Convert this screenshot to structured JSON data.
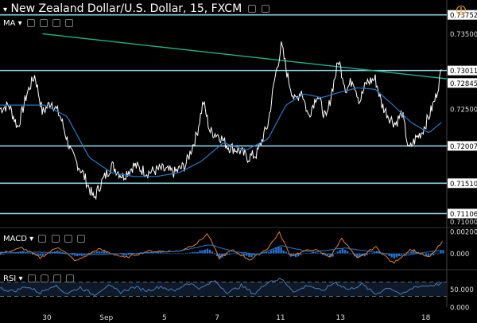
{
  "header": {
    "title": "New Zealand Dollar/U.S. Dollar, 15, FXCM",
    "dropdown_glyph": "▾",
    "indicator_ma": "MA",
    "alert_glyph": "!"
  },
  "colors": {
    "background": "#000000",
    "price": "#ffffff",
    "ma": "#2a78c2",
    "levels": "#8fd2e0",
    "trendline": "#1fb38f",
    "macd": "#e0802a",
    "signal": "#2a78c2",
    "hist": "#2a6fd0",
    "rsi": "#4f78ad",
    "price_label_bg": "#ffffff",
    "current_label_bg": "#ffffff"
  },
  "chart_data": [
    {
      "type": "line",
      "name": "price-panel",
      "x_ticks": [
        "30",
        "Sep",
        "5",
        "7",
        "11",
        "13",
        "18"
      ],
      "y_ticks": [
        "0.73752",
        "0.73500",
        "0.73011",
        "0.72845",
        "0.72500",
        "0.72007",
        "0.71510",
        "0.71106",
        "0.71000"
      ],
      "ylim": [
        0.7092,
        0.7395
      ],
      "horizontal_levels": [
        0.73752,
        0.73011,
        0.72007,
        0.7151,
        0.71106
      ],
      "current_price": 0.72845,
      "trendline": [
        [
          0.095,
          0.735
        ],
        [
          1.0,
          0.729
        ]
      ],
      "price_anchors": [
        [
          0.0,
          0.725
        ],
        [
          0.02,
          0.7255
        ],
        [
          0.04,
          0.7225
        ],
        [
          0.06,
          0.727
        ],
        [
          0.078,
          0.7295
        ],
        [
          0.095,
          0.7245
        ],
        [
          0.115,
          0.726
        ],
        [
          0.135,
          0.724
        ],
        [
          0.16,
          0.719
        ],
        [
          0.185,
          0.7165
        ],
        [
          0.21,
          0.713
        ],
        [
          0.225,
          0.715
        ],
        [
          0.25,
          0.7175
        ],
        [
          0.275,
          0.716
        ],
        [
          0.3,
          0.7175
        ],
        [
          0.33,
          0.7165
        ],
        [
          0.36,
          0.717
        ],
        [
          0.39,
          0.7165
        ],
        [
          0.415,
          0.7175
        ],
        [
          0.44,
          0.7215
        ],
        [
          0.455,
          0.726
        ],
        [
          0.47,
          0.722
        ],
        [
          0.49,
          0.7215
        ],
        [
          0.51,
          0.72
        ],
        [
          0.535,
          0.7195
        ],
        [
          0.555,
          0.7185
        ],
        [
          0.575,
          0.719
        ],
        [
          0.6,
          0.723
        ],
        [
          0.615,
          0.729
        ],
        [
          0.63,
          0.7335
        ],
        [
          0.645,
          0.729
        ],
        [
          0.66,
          0.726
        ],
        [
          0.675,
          0.7275
        ],
        [
          0.69,
          0.724
        ],
        [
          0.71,
          0.727
        ],
        [
          0.73,
          0.7235
        ],
        [
          0.745,
          0.728
        ],
        [
          0.758,
          0.7315
        ],
        [
          0.775,
          0.7275
        ],
        [
          0.79,
          0.729
        ],
        [
          0.805,
          0.726
        ],
        [
          0.82,
          0.7285
        ],
        [
          0.84,
          0.729
        ],
        [
          0.855,
          0.7255
        ],
        [
          0.87,
          0.724
        ],
        [
          0.885,
          0.723
        ],
        [
          0.9,
          0.7245
        ],
        [
          0.915,
          0.7195
        ],
        [
          0.93,
          0.721
        ],
        [
          0.945,
          0.722
        ],
        [
          0.96,
          0.724
        ],
        [
          0.975,
          0.7265
        ],
        [
          0.988,
          0.73
        ]
      ],
      "ma_anchors": [
        [
          0.0,
          0.7255
        ],
        [
          0.05,
          0.7255
        ],
        [
          0.1,
          0.7255
        ],
        [
          0.15,
          0.724
        ],
        [
          0.2,
          0.7185
        ],
        [
          0.25,
          0.7165
        ],
        [
          0.3,
          0.716
        ],
        [
          0.35,
          0.716
        ],
        [
          0.4,
          0.7165
        ],
        [
          0.45,
          0.718
        ],
        [
          0.5,
          0.7205
        ],
        [
          0.55,
          0.7195
        ],
        [
          0.6,
          0.721
        ],
        [
          0.64,
          0.7255
        ],
        [
          0.68,
          0.727
        ],
        [
          0.72,
          0.7265
        ],
        [
          0.76,
          0.7272
        ],
        [
          0.8,
          0.7278
        ],
        [
          0.84,
          0.7276
        ],
        [
          0.88,
          0.7255
        ],
        [
          0.92,
          0.7232
        ],
        [
          0.96,
          0.7218
        ],
        [
          0.988,
          0.7232
        ]
      ]
    },
    {
      "type": "line",
      "name": "macd-panel",
      "label": "MACD",
      "y_ticks": [
        "0.00200",
        "0.000"
      ],
      "ylim": [
        -0.0014,
        0.0022
      ],
      "macd_anchors": [
        [
          0.0,
          0.0
        ],
        [
          0.05,
          0.0005
        ],
        [
          0.09,
          -0.0004
        ],
        [
          0.13,
          0.0006
        ],
        [
          0.17,
          -0.0007
        ],
        [
          0.22,
          0.0004
        ],
        [
          0.28,
          -0.0004
        ],
        [
          0.33,
          0.0002
        ],
        [
          0.4,
          0.0002
        ],
        [
          0.44,
          0.0009
        ],
        [
          0.465,
          0.0018
        ],
        [
          0.49,
          -0.0004
        ],
        [
          0.52,
          0.0003
        ],
        [
          0.56,
          -0.0006
        ],
        [
          0.6,
          0.0005
        ],
        [
          0.625,
          0.0019
        ],
        [
          0.65,
          -0.0002
        ],
        [
          0.7,
          0.0004
        ],
        [
          0.74,
          -0.0003
        ],
        [
          0.765,
          0.0014
        ],
        [
          0.8,
          -0.0005
        ],
        [
          0.84,
          0.0006
        ],
        [
          0.88,
          -0.0009
        ],
        [
          0.92,
          0.0004
        ],
        [
          0.96,
          -0.0004
        ],
        [
          0.99,
          0.001
        ]
      ],
      "signal_anchors": [
        [
          0.0,
          0.0001
        ],
        [
          0.1,
          0.0001
        ],
        [
          0.2,
          -0.0001
        ],
        [
          0.3,
          0.0
        ],
        [
          0.4,
          0.0002
        ],
        [
          0.47,
          0.0008
        ],
        [
          0.52,
          0.0002
        ],
        [
          0.58,
          -0.0001
        ],
        [
          0.63,
          0.0007
        ],
        [
          0.7,
          0.0001
        ],
        [
          0.77,
          0.0005
        ],
        [
          0.84,
          0.0001
        ],
        [
          0.9,
          -0.0002
        ],
        [
          0.99,
          0.0003
        ]
      ]
    },
    {
      "type": "line",
      "name": "rsi-panel",
      "label": "RSI",
      "y_ticks": [
        "50.000",
        "0.000"
      ],
      "ylim": [
        0,
        100
      ],
      "bands": [
        30,
        70
      ],
      "rsi_anchors": [
        [
          0.0,
          52
        ],
        [
          0.03,
          44
        ],
        [
          0.06,
          58
        ],
        [
          0.09,
          40
        ],
        [
          0.12,
          62
        ],
        [
          0.15,
          38
        ],
        [
          0.18,
          55
        ],
        [
          0.21,
          34
        ],
        [
          0.24,
          60
        ],
        [
          0.27,
          42
        ],
        [
          0.3,
          56
        ],
        [
          0.33,
          46
        ],
        [
          0.36,
          58
        ],
        [
          0.39,
          44
        ],
        [
          0.42,
          68
        ],
        [
          0.45,
          52
        ],
        [
          0.48,
          74
        ],
        [
          0.51,
          40
        ],
        [
          0.54,
          60
        ],
        [
          0.57,
          36
        ],
        [
          0.6,
          72
        ],
        [
          0.63,
          78
        ],
        [
          0.66,
          42
        ],
        [
          0.69,
          62
        ],
        [
          0.72,
          44
        ],
        [
          0.75,
          70
        ],
        [
          0.78,
          48
        ],
        [
          0.81,
          64
        ],
        [
          0.84,
          36
        ],
        [
          0.87,
          56
        ],
        [
          0.9,
          34
        ],
        [
          0.93,
          58
        ],
        [
          0.96,
          60
        ],
        [
          0.99,
          66
        ]
      ]
    }
  ]
}
